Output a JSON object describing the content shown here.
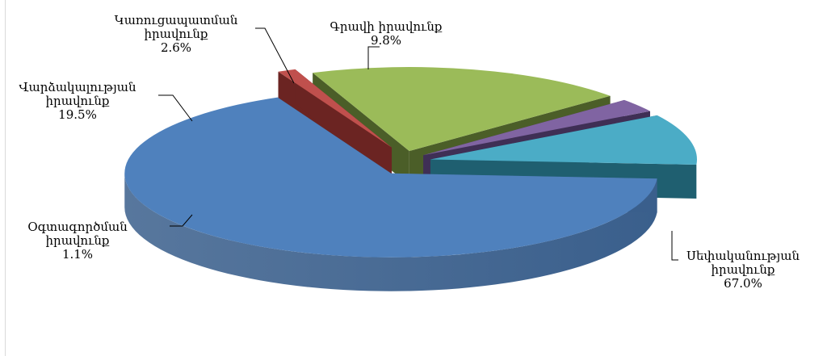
{
  "chart_data": {
    "type": "pie",
    "title": "",
    "exploded": true,
    "three_d": true,
    "slices": [
      {
        "label": "Սեփականության իրավունք",
        "label_lines": [
          "Սեփականության",
          "իրավունք"
        ],
        "value": 67.0,
        "value_text": "67.0%",
        "color": "#4f81bd",
        "side_color": "#3a5f8c"
      },
      {
        "label": "Օգտագործման իրավունք",
        "label_lines": [
          "Օգտագործման",
          "իրավունք"
        ],
        "value": 1.1,
        "value_text": "1.1%",
        "color": "#c0504d",
        "side_color": "#6b2422"
      },
      {
        "label": "Վարձակալության իրավունք",
        "label_lines": [
          "Վարձակալության",
          "իրավունք"
        ],
        "value": 19.5,
        "value_text": "19.5%",
        "color": "#9bbb59",
        "side_color": "#4b5e28"
      },
      {
        "label": "Կառուցապատման իրավունք",
        "label_lines": [
          "Կառուցապատման",
          "իրավունք"
        ],
        "value": 2.6,
        "value_text": "2.6%",
        "color": "#8064a2",
        "side_color": "#3f2f55"
      },
      {
        "label": "Գրավի իրավունք",
        "label_lines": [
          "Գրավի իրավունք"
        ],
        "value": 9.8,
        "value_text": "9.8%",
        "color": "#4bacc6",
        "side_color": "#1f5f70"
      }
    ]
  }
}
